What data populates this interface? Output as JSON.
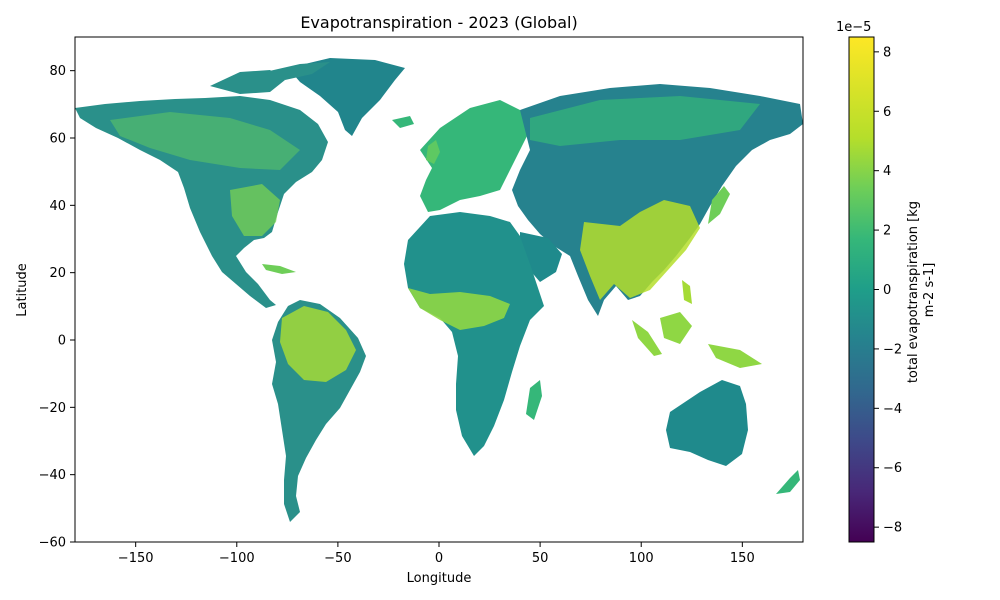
{
  "figure": {
    "title": "Evapotranspiration - 2023 (Global)",
    "xlabel": "Longitude",
    "ylabel": "Latitude",
    "colorbar_label_line1": "total evapotranspiration [kg",
    "colorbar_label_line2": "m-2 s-1]",
    "colorbar_offset_text": "1e−5"
  },
  "chart_data": {
    "type": "heatmap",
    "title": "Evapotranspiration - 2023 (Global)",
    "xlabel": "Longitude",
    "ylabel": "Latitude",
    "xlim": [
      -180,
      180
    ],
    "ylim": [
      -60,
      90
    ],
    "x_ticks": [
      -150,
      -100,
      -50,
      0,
      50,
      100,
      150
    ],
    "x_tick_labels": [
      "−150",
      "−100",
      "−50",
      "0",
      "50",
      "100",
      "150"
    ],
    "y_ticks": [
      80,
      60,
      40,
      20,
      0,
      -20,
      -40,
      -60
    ],
    "y_tick_labels": [
      "80",
      "60",
      "40",
      "20",
      "0",
      "−20",
      "−40",
      "−60"
    ],
    "colorbar": {
      "colormap": "viridis",
      "vmin": -8.5,
      "vmax": 8.5,
      "scale_factor": "1e-5",
      "ticks": [
        8,
        6,
        4,
        2,
        0,
        -2,
        -4,
        -6,
        -8
      ],
      "tick_labels": [
        "8",
        "6",
        "4",
        "2",
        "0",
        "−2",
        "−4",
        "−6",
        "−8"
      ],
      "label": "total evapotranspiration [kg m-2 s-1]"
    },
    "ocean": "no data (white)",
    "colors": {
      "low": "#440154",
      "mid": "#21918c",
      "high": "#fde725",
      "land_typical": "#25878d",
      "land_humid": "#8fd744"
    }
  }
}
